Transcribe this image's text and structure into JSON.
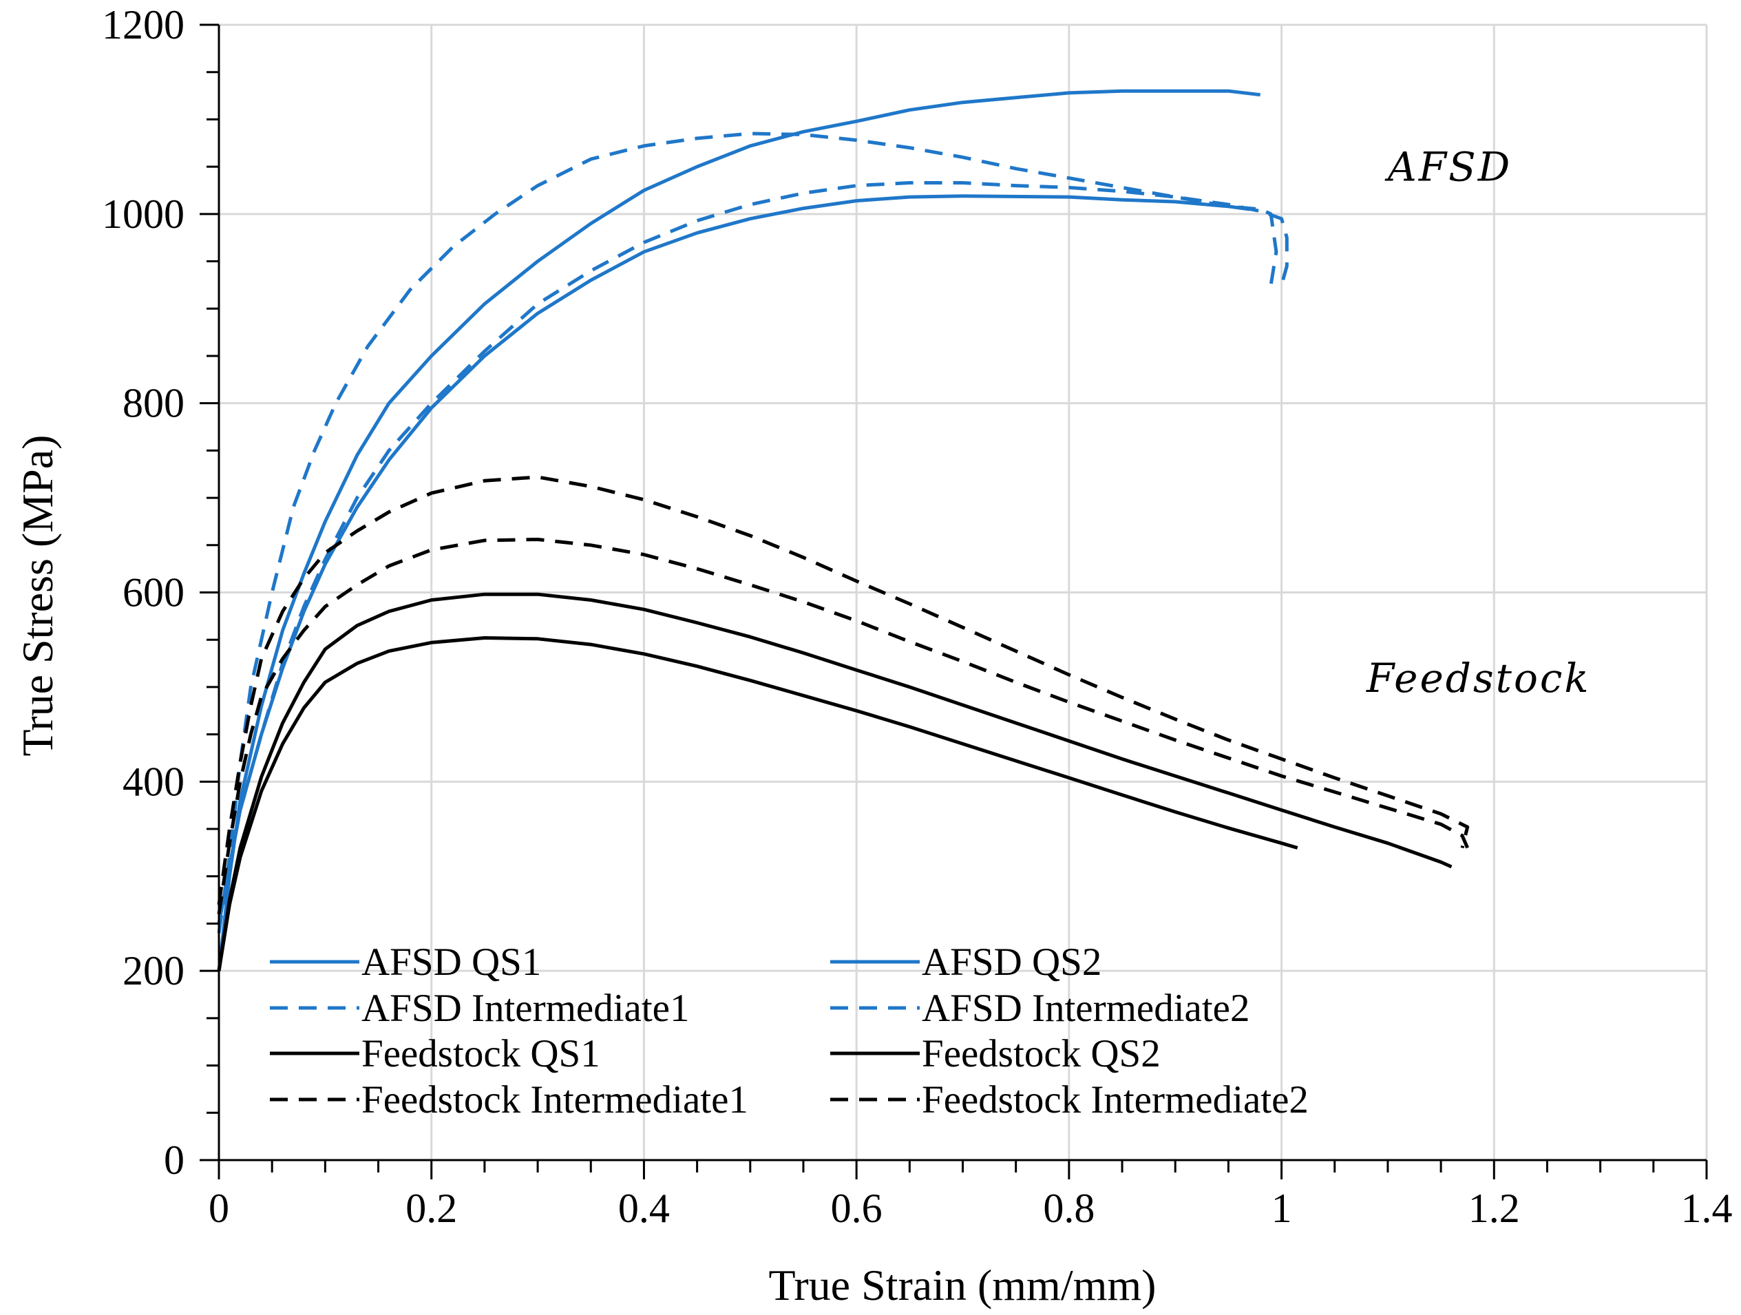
{
  "chart_data": {
    "type": "line",
    "title": "",
    "xlabel": "True Strain (mm/mm)",
    "ylabel": "True Stress (MPa)",
    "xlim": [
      0,
      1.4
    ],
    "ylim": [
      0,
      1200
    ],
    "xticks": [
      0,
      0.2,
      0.4,
      0.6,
      0.8,
      1,
      1.2,
      1.4
    ],
    "xtick_labels": [
      "0",
      "0.2",
      "0.4",
      "0.6",
      "0.8",
      "1",
      "1.2",
      "1.4"
    ],
    "yticks": [
      0,
      200,
      400,
      600,
      800,
      1000,
      1200
    ],
    "ytick_labels": [
      "0",
      "200",
      "400",
      "600",
      "800",
      "1000",
      "1200"
    ],
    "grid": true,
    "legend_position": "bottom-left",
    "annotations": [
      {
        "text": "AFSD",
        "x": 1.1,
        "y": 1035
      },
      {
        "text": "Feedstock",
        "x": 1.08,
        "y": 495
      }
    ],
    "series": [
      {
        "name": "AFSD QS1",
        "color": "#1f77c9",
        "dash": "solid",
        "points": [
          [
            0,
            200
          ],
          [
            0.01,
            300
          ],
          [
            0.02,
            380
          ],
          [
            0.04,
            480
          ],
          [
            0.06,
            560
          ],
          [
            0.08,
            620
          ],
          [
            0.1,
            675
          ],
          [
            0.13,
            745
          ],
          [
            0.16,
            800
          ],
          [
            0.2,
            850
          ],
          [
            0.25,
            905
          ],
          [
            0.3,
            950
          ],
          [
            0.35,
            990
          ],
          [
            0.4,
            1025
          ],
          [
            0.45,
            1050
          ],
          [
            0.5,
            1072
          ],
          [
            0.55,
            1087
          ],
          [
            0.6,
            1098
          ],
          [
            0.65,
            1110
          ],
          [
            0.7,
            1118
          ],
          [
            0.75,
            1123
          ],
          [
            0.8,
            1128
          ],
          [
            0.85,
            1130
          ],
          [
            0.9,
            1130
          ],
          [
            0.95,
            1130
          ],
          [
            0.98,
            1126
          ]
        ]
      },
      {
        "name": "AFSD QS2",
        "color": "#1f77c9",
        "dash": "solid",
        "points": [
          [
            0,
            250
          ],
          [
            0.01,
            310
          ],
          [
            0.02,
            370
          ],
          [
            0.04,
            450
          ],
          [
            0.06,
            520
          ],
          [
            0.08,
            580
          ],
          [
            0.1,
            630
          ],
          [
            0.13,
            690
          ],
          [
            0.16,
            740
          ],
          [
            0.2,
            795
          ],
          [
            0.25,
            850
          ],
          [
            0.3,
            895
          ],
          [
            0.35,
            930
          ],
          [
            0.4,
            960
          ],
          [
            0.45,
            980
          ],
          [
            0.5,
            995
          ],
          [
            0.55,
            1006
          ],
          [
            0.6,
            1014
          ],
          [
            0.65,
            1018
          ],
          [
            0.7,
            1019
          ],
          [
            0.8,
            1018
          ],
          [
            0.85,
            1015
          ],
          [
            0.9,
            1013
          ],
          [
            0.95,
            1008
          ],
          [
            0.97,
            1005
          ]
        ]
      },
      {
        "name": "AFSD Intermediate1",
        "color": "#1f77c9",
        "dash": "dashed",
        "points": [
          [
            0,
            240
          ],
          [
            0.01,
            320
          ],
          [
            0.02,
            420
          ],
          [
            0.03,
            500
          ],
          [
            0.05,
            600
          ],
          [
            0.07,
            690
          ],
          [
            0.09,
            750
          ],
          [
            0.11,
            800
          ],
          [
            0.14,
            860
          ],
          [
            0.18,
            920
          ],
          [
            0.22,
            965
          ],
          [
            0.26,
            1000
          ],
          [
            0.3,
            1030
          ],
          [
            0.35,
            1058
          ],
          [
            0.4,
            1072
          ],
          [
            0.45,
            1080
          ],
          [
            0.5,
            1085
          ],
          [
            0.55,
            1084
          ],
          [
            0.6,
            1078
          ],
          [
            0.65,
            1070
          ],
          [
            0.7,
            1060
          ],
          [
            0.75,
            1048
          ],
          [
            0.8,
            1038
          ],
          [
            0.85,
            1028
          ],
          [
            0.9,
            1018
          ],
          [
            0.95,
            1008
          ],
          [
            0.98,
            1005
          ],
          [
            0.99,
            1000
          ],
          [
            0.995,
            960
          ],
          [
            0.99,
            925
          ]
        ]
      },
      {
        "name": "AFSD Intermediate2",
        "color": "#1f77c9",
        "dash": "dashed",
        "points": [
          [
            0,
            250
          ],
          [
            0.01,
            310
          ],
          [
            0.02,
            370
          ],
          [
            0.04,
            450
          ],
          [
            0.06,
            525
          ],
          [
            0.08,
            585
          ],
          [
            0.1,
            635
          ],
          [
            0.13,
            700
          ],
          [
            0.16,
            750
          ],
          [
            0.2,
            800
          ],
          [
            0.25,
            855
          ],
          [
            0.3,
            905
          ],
          [
            0.35,
            940
          ],
          [
            0.4,
            970
          ],
          [
            0.45,
            993
          ],
          [
            0.5,
            1010
          ],
          [
            0.55,
            1022
          ],
          [
            0.6,
            1030
          ],
          [
            0.65,
            1033
          ],
          [
            0.7,
            1033
          ],
          [
            0.75,
            1030
          ],
          [
            0.8,
            1028
          ],
          [
            0.85,
            1024
          ],
          [
            0.9,
            1018
          ],
          [
            0.95,
            1010
          ],
          [
            0.98,
            1003
          ],
          [
            1.0,
            995
          ],
          [
            1.005,
            975
          ],
          [
            1.005,
            945
          ],
          [
            1.0,
            925
          ]
        ]
      },
      {
        "name": "Feedstock QS1",
        "color": "#000000",
        "dash": "solid",
        "points": [
          [
            0,
            200
          ],
          [
            0.01,
            270
          ],
          [
            0.02,
            320
          ],
          [
            0.04,
            390
          ],
          [
            0.06,
            440
          ],
          [
            0.08,
            478
          ],
          [
            0.1,
            505
          ],
          [
            0.13,
            525
          ],
          [
            0.16,
            538
          ],
          [
            0.2,
            547
          ],
          [
            0.25,
            552
          ],
          [
            0.3,
            551
          ],
          [
            0.35,
            545
          ],
          [
            0.4,
            535
          ],
          [
            0.45,
            522
          ],
          [
            0.5,
            507
          ],
          [
            0.55,
            491
          ],
          [
            0.6,
            475
          ],
          [
            0.65,
            458
          ],
          [
            0.7,
            440
          ],
          [
            0.75,
            422
          ],
          [
            0.8,
            404
          ],
          [
            0.85,
            386
          ],
          [
            0.9,
            368
          ],
          [
            0.95,
            351
          ],
          [
            1.0,
            335
          ],
          [
            1.015,
            330
          ]
        ]
      },
      {
        "name": "Feedstock QS2",
        "color": "#000000",
        "dash": "solid",
        "points": [
          [
            0,
            200
          ],
          [
            0.01,
            275
          ],
          [
            0.02,
            330
          ],
          [
            0.04,
            405
          ],
          [
            0.06,
            462
          ],
          [
            0.08,
            505
          ],
          [
            0.1,
            540
          ],
          [
            0.13,
            565
          ],
          [
            0.16,
            580
          ],
          [
            0.2,
            592
          ],
          [
            0.25,
            598
          ],
          [
            0.3,
            598
          ],
          [
            0.35,
            592
          ],
          [
            0.4,
            582
          ],
          [
            0.45,
            568
          ],
          [
            0.5,
            553
          ],
          [
            0.55,
            536
          ],
          [
            0.6,
            518
          ],
          [
            0.65,
            500
          ],
          [
            0.7,
            481
          ],
          [
            0.75,
            462
          ],
          [
            0.8,
            443
          ],
          [
            0.85,
            424
          ],
          [
            0.9,
            406
          ],
          [
            0.95,
            388
          ],
          [
            1.0,
            370
          ],
          [
            1.05,
            352
          ],
          [
            1.1,
            335
          ],
          [
            1.15,
            315
          ],
          [
            1.16,
            310
          ]
        ]
      },
      {
        "name": "Feedstock Intermediate1",
        "color": "#000000",
        "dash": "dashed",
        "points": [
          [
            0,
            270
          ],
          [
            0.01,
            350
          ],
          [
            0.02,
            420
          ],
          [
            0.03,
            480
          ],
          [
            0.04,
            530
          ],
          [
            0.06,
            580
          ],
          [
            0.08,
            615
          ],
          [
            0.1,
            642
          ],
          [
            0.13,
            665
          ],
          [
            0.16,
            685
          ],
          [
            0.2,
            705
          ],
          [
            0.25,
            718
          ],
          [
            0.3,
            722
          ],
          [
            0.35,
            712
          ],
          [
            0.4,
            698
          ],
          [
            0.45,
            680
          ],
          [
            0.5,
            660
          ],
          [
            0.55,
            637
          ],
          [
            0.6,
            612
          ],
          [
            0.65,
            588
          ],
          [
            0.7,
            563
          ],
          [
            0.75,
            538
          ],
          [
            0.8,
            513
          ],
          [
            0.85,
            489
          ],
          [
            0.9,
            466
          ],
          [
            0.95,
            444
          ],
          [
            1.0,
            424
          ],
          [
            1.05,
            404
          ],
          [
            1.1,
            385
          ],
          [
            1.15,
            366
          ],
          [
            1.175,
            352
          ],
          [
            1.17,
            330
          ]
        ]
      },
      {
        "name": "Feedstock Intermediate2",
        "color": "#000000",
        "dash": "dashed",
        "points": [
          [
            0,
            260
          ],
          [
            0.01,
            335
          ],
          [
            0.02,
            400
          ],
          [
            0.03,
            450
          ],
          [
            0.04,
            490
          ],
          [
            0.06,
            530
          ],
          [
            0.08,
            560
          ],
          [
            0.1,
            585
          ],
          [
            0.13,
            608
          ],
          [
            0.16,
            628
          ],
          [
            0.2,
            645
          ],
          [
            0.25,
            655
          ],
          [
            0.3,
            656
          ],
          [
            0.35,
            650
          ],
          [
            0.4,
            640
          ],
          [
            0.45,
            625
          ],
          [
            0.5,
            608
          ],
          [
            0.55,
            590
          ],
          [
            0.6,
            570
          ],
          [
            0.65,
            548
          ],
          [
            0.7,
            527
          ],
          [
            0.75,
            505
          ],
          [
            0.8,
            484
          ],
          [
            0.85,
            464
          ],
          [
            0.9,
            444
          ],
          [
            0.95,
            425
          ],
          [
            1.0,
            406
          ],
          [
            1.05,
            389
          ],
          [
            1.1,
            372
          ],
          [
            1.15,
            355
          ],
          [
            1.17,
            343
          ],
          [
            1.175,
            330
          ]
        ]
      }
    ]
  }
}
